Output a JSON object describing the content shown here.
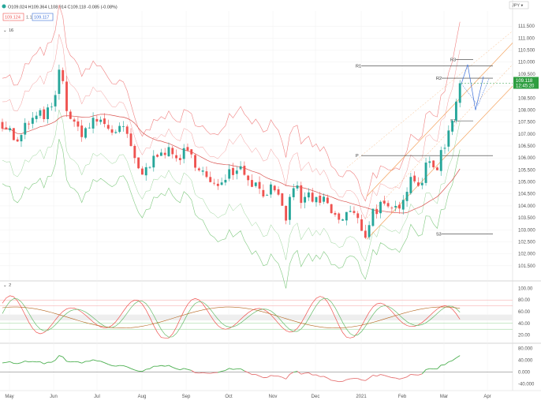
{
  "header": {
    "ohlc": "O109.024 H109.364 L108.914 C109.118 -0.085 (-0.08%)",
    "bid": "109.124",
    "spread": "1.1",
    "ask": "109.117",
    "price_scale_label": "JPY ▾",
    "indicator_label": "16",
    "osc1_label": "2",
    "osc2_label": ""
  },
  "colors": {
    "up": "#26a69a",
    "down": "#ef5350",
    "last_price": "#2e9e40",
    "upper_band": "#f08080",
    "lower_band": "#7fc97f",
    "channel": "#f4a460",
    "projection": "#3b6fd8",
    "levels": "#333333"
  },
  "chart_data": [
    {
      "type": "candlestick",
      "title": "",
      "xlabel": "",
      "ylabel": "",
      "ylim": [
        101.0,
        112.0
      ],
      "yticks": [
        "111.500",
        "111.000",
        "110.500",
        "110.000",
        "109.500",
        "109.000",
        "108.500",
        "108.000",
        "107.500",
        "107.000",
        "106.500",
        "106.000",
        "105.500",
        "105.000",
        "104.500",
        "104.000",
        "103.500",
        "103.000",
        "102.500",
        "102.000",
        "101.500"
      ],
      "last_price": "109.118",
      "last_time": "12:45:20",
      "x_month_labels": [
        "May",
        "Jun",
        "Jul",
        "Aug",
        "Sep",
        "Oct",
        "Nov",
        "Dec",
        "2021",
        "Feb",
        "Mar",
        "Apr"
      ],
      "close_path": [
        [
          0,
          107.5
        ],
        [
          10,
          107.1
        ],
        [
          20,
          106.5
        ],
        [
          30,
          107.4
        ],
        [
          40,
          107.6
        ],
        [
          50,
          107.8
        ],
        [
          60,
          107.9
        ],
        [
          70,
          108.6
        ],
        [
          72,
          109.8
        ],
        [
          75,
          109.4
        ],
        [
          80,
          108.3
        ],
        [
          90,
          107.3
        ],
        [
          100,
          107.1
        ],
        [
          110,
          107.3
        ],
        [
          120,
          107.6
        ],
        [
          130,
          107.4
        ],
        [
          140,
          107.1
        ],
        [
          150,
          107.3
        ],
        [
          160,
          106.7
        ],
        [
          170,
          105.8
        ],
        [
          175,
          104.9
        ],
        [
          180,
          105.5
        ],
        [
          190,
          105.8
        ],
        [
          200,
          106.5
        ],
        [
          210,
          106.2
        ],
        [
          220,
          106.0
        ],
        [
          230,
          106.2
        ],
        [
          240,
          106.0
        ],
        [
          250,
          105.7
        ],
        [
          260,
          105.0
        ],
        [
          270,
          104.7
        ],
        [
          280,
          105.3
        ],
        [
          290,
          105.5
        ],
        [
          300,
          105.7
        ],
        [
          310,
          105.3
        ],
        [
          320,
          104.9
        ],
        [
          330,
          104.6
        ],
        [
          340,
          104.7
        ],
        [
          350,
          104.2
        ],
        [
          360,
          103.5
        ],
        [
          370,
          105.0
        ],
        [
          380,
          104.1
        ],
        [
          390,
          104.5
        ],
        [
          400,
          104.0
        ],
        [
          410,
          104.2
        ],
        [
          420,
          103.5
        ],
        [
          430,
          103.4
        ],
        [
          440,
          103.8
        ],
        [
          450,
          103.4
        ],
        [
          460,
          102.8
        ],
        [
          470,
          103.8
        ],
        [
          480,
          104.0
        ],
        [
          490,
          103.7
        ],
        [
          500,
          103.9
        ],
        [
          510,
          104.6
        ],
        [
          520,
          105.3
        ],
        [
          530,
          104.9
        ],
        [
          540,
          105.8
        ],
        [
          550,
          105.6
        ],
        [
          560,
          106.5
        ],
        [
          570,
          107.6
        ],
        [
          575,
          108.5
        ],
        [
          580,
          108.9
        ],
        [
          585,
          109.12
        ]
      ],
      "pivot_levels": [
        {
          "name": "R3",
          "value": 110.1
        },
        {
          "name": "R2",
          "value": 109.33
        },
        {
          "name": "R1",
          "value": 109.85
        },
        {
          "name": "P",
          "value": 106.1
        },
        {
          "name": "S1",
          "value": 107.55
        },
        {
          "name": "S3",
          "value": 102.83
        }
      ]
    },
    {
      "type": "line",
      "title": "",
      "ylim": [
        10,
        110
      ],
      "yticks": [
        "100.00",
        "80.00",
        "60.00",
        "40.00",
        "20.00"
      ],
      "series": []
    },
    {
      "type": "line",
      "title": "",
      "ylim": [
        -55,
        90
      ],
      "yticks": [
        "80.000",
        "40.000",
        "0.000",
        "-40.000"
      ],
      "series": []
    }
  ]
}
